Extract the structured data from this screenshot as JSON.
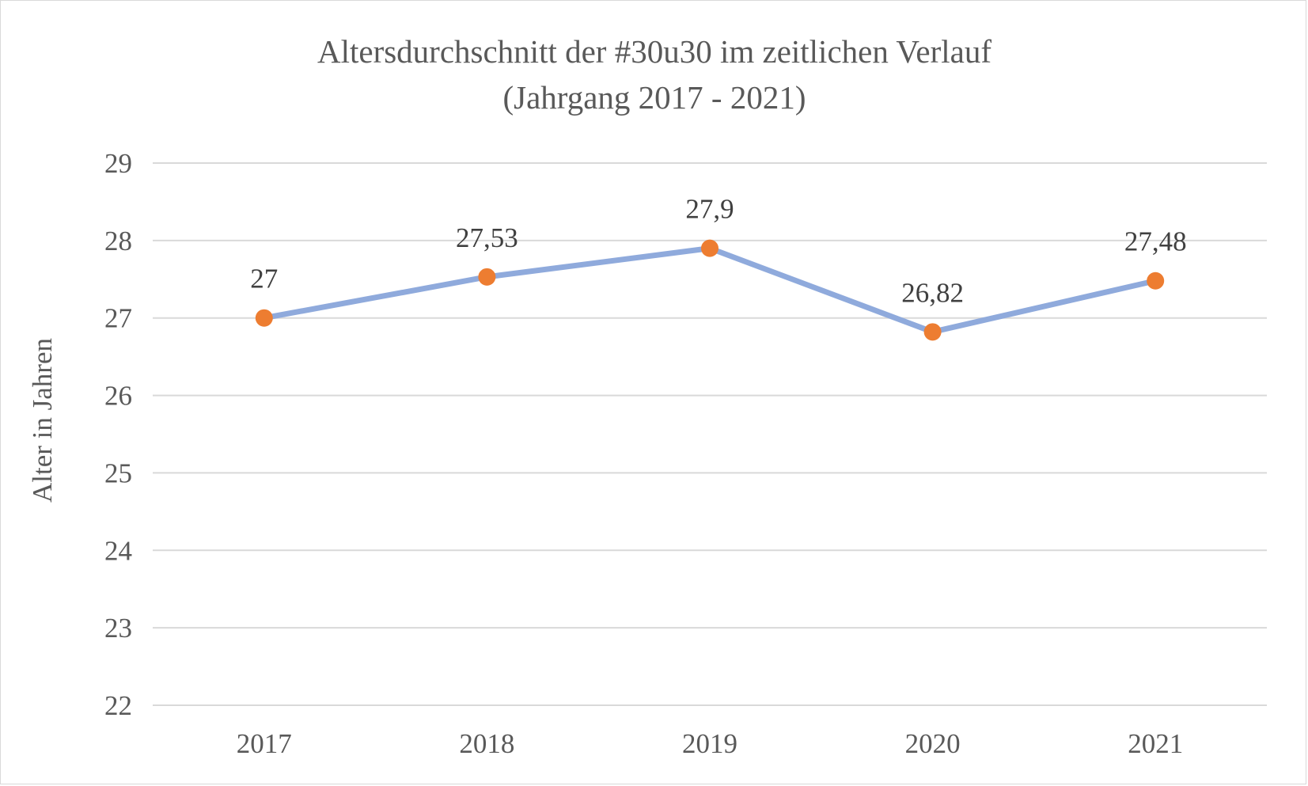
{
  "chart_data": {
    "type": "line",
    "title": "Altersdurchschnitt der #30u30 im zeitlichen Verlauf",
    "subtitle": "(Jahrgang 2017 - 2021)",
    "xlabel": "",
    "ylabel": "Alter in Jahren",
    "categories": [
      "2017",
      "2018",
      "2019",
      "2020",
      "2021"
    ],
    "series": [
      {
        "values": [
          27,
          27.53,
          27.9,
          26.82,
          27.48
        ],
        "data_labels": [
          "27",
          "27,53",
          "27,9",
          "26,82",
          "27,48"
        ],
        "line_color": "#8faadc",
        "marker_color": "#ed7d31"
      }
    ],
    "ylim": [
      22,
      29
    ],
    "yticks": [
      "22",
      "23",
      "24",
      "25",
      "26",
      "27",
      "28",
      "29"
    ],
    "grid": true,
    "legend": "none"
  }
}
